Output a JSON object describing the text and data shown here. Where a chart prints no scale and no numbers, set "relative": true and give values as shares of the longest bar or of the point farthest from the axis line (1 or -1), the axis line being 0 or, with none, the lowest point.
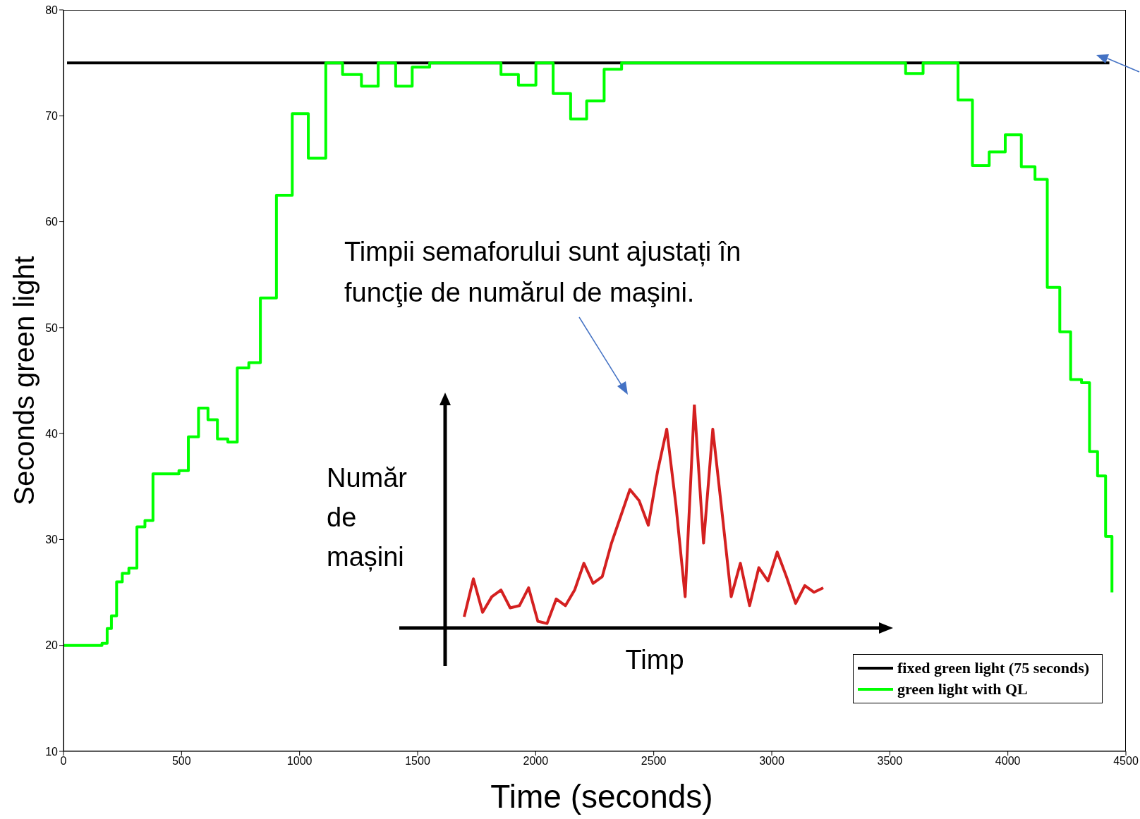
{
  "chart_data": [
    {
      "type": "step",
      "xlabel": "Time (seconds)",
      "ylabel": "Seconds green light",
      "xlim": [
        0,
        4500
      ],
      "xticks": [
        0,
        500,
        1000,
        1500,
        2000,
        2500,
        3000,
        3500,
        4000,
        4500
      ],
      "ylim": [
        10,
        80
      ],
      "yticks": [
        10,
        20,
        30,
        40,
        50,
        60,
        70,
        80
      ],
      "legend": "bottom right",
      "annotations": [
        "Timpii semaforului sunt ajustați în funcţie de numărul de maşini."
      ],
      "series": [
        {
          "name": "fixed green light (75 seconds)",
          "type": "line",
          "color": "#000000",
          "x": [
            15,
            4430
          ],
          "values": [
            75,
            75
          ]
        },
        {
          "name": "green light with QL",
          "type": "step",
          "color": "#00ff00",
          "x": [
            0,
            163,
            185,
            203,
            225,
            249,
            277,
            311,
            345,
            379,
            489,
            529,
            572,
            612,
            652,
            696,
            736,
            785,
            834,
            902,
            969,
            1037,
            1111,
            1182,
            1262,
            1333,
            1407,
            1477,
            1551,
            1853,
            1927,
            2001,
            2074,
            2148,
            2216,
            2290,
            2364,
            3567,
            3641,
            3789,
            3850,
            3921,
            3989,
            4057,
            4115,
            4167,
            4220,
            4266,
            4312,
            4346,
            4380,
            4414,
            4441
          ],
          "values": [
            20,
            20.2,
            21.6,
            22.8,
            26,
            26.8,
            27.3,
            31.2,
            31.8,
            36.2,
            36.5,
            39.7,
            42.4,
            41.3,
            39.5,
            39.2,
            46.2,
            46.7,
            52.8,
            62.5,
            70.2,
            66,
            75,
            73.9,
            72.8,
            75,
            72.8,
            74.6,
            75,
            73.9,
            72.9,
            75,
            72.1,
            69.7,
            71.4,
            74.4,
            75,
            74,
            75,
            71.5,
            65.3,
            66.6,
            68.2,
            65.2,
            64,
            53.8,
            49.6,
            45.1,
            44.8,
            38.3,
            36,
            30.3,
            25
          ]
        }
      ]
    },
    {
      "type": "line",
      "relative": true,
      "xlabel": "Timp",
      "ylabel": "Număr de mașini",
      "categories": [
        null,
        null,
        null,
        null,
        null,
        null,
        null,
        null,
        null,
        null,
        null,
        null,
        null,
        null,
        null,
        null,
        null,
        null,
        null,
        null,
        null,
        null,
        null,
        null,
        null,
        null,
        null,
        null,
        null,
        null,
        null,
        null,
        null,
        null,
        null,
        null,
        null,
        null,
        null,
        null
      ],
      "series": [
        {
          "color": "#d42020",
          "values": [
            0.05,
            0.22,
            0.07,
            0.14,
            0.17,
            0.09,
            0.1,
            0.18,
            0.03,
            0.02,
            0.13,
            0.1,
            0.17,
            0.29,
            0.2,
            0.23,
            0.38,
            0.5,
            0.62,
            0.57,
            0.46,
            0.7,
            0.89,
            0.55,
            0.14,
            1,
            0.38,
            0.89,
            0.52,
            0.14,
            0.29,
            0.1,
            0.27,
            0.21,
            0.34,
            0.23,
            0.11,
            0.19,
            0.16,
            0.18
          ]
        }
      ]
    }
  ]
}
